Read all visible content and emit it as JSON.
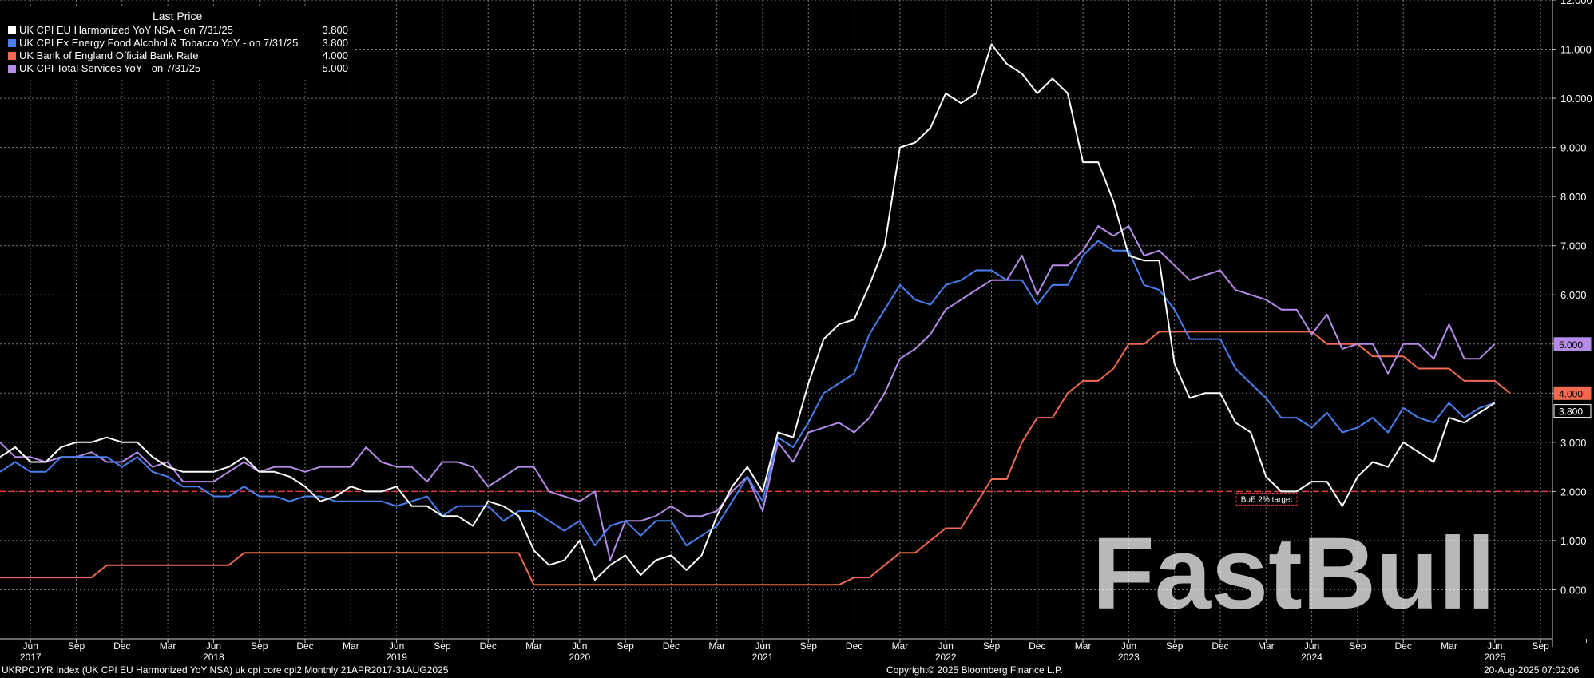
{
  "legend": {
    "heading": "Last Price",
    "items": [
      {
        "label": "UK CPI EU Harmonized YoY NSA -  on 7/31/25",
        "value": "3.800",
        "color": "#ffffff"
      },
      {
        "label": "UK CPI Ex Energy Food Alcohol & Tobacco YoY -  on 7/31/25",
        "value": "3.800",
        "color": "#4a7ff0"
      },
      {
        "label": "UK Bank of England Official Bank Rate",
        "value": "4.000",
        "color": "#f06a50"
      },
      {
        "label": "UK CPI Total Services YoY -  on 7/31/25",
        "value": "5.000",
        "color": "#b58ce8"
      }
    ]
  },
  "footer": {
    "left": "UKRPCJYR Index (UK CPI EU Harmonized YoY NSA) uk cpi core cpi2  Monthly 21APR2017-31AUG2025",
    "center": "Copyright© 2025 Bloomberg Finance L.P.",
    "right": "20-Aug-2025 07:02:06"
  },
  "watermark": "FastBull",
  "chart_data": {
    "type": "line",
    "ylim": [
      -1,
      12
    ],
    "y_ticks": [
      "0.000",
      "1.000",
      "2.000",
      "3.000",
      "4.000",
      "5.000",
      "6.000",
      "7.000",
      "8.000",
      "9.000",
      "10.000",
      "11.000",
      "12.000"
    ],
    "x_month_ticks": [
      "Jun",
      "Sep",
      "Dec",
      "Mar",
      "Jun",
      "Sep",
      "Dec",
      "Mar",
      "Jun",
      "Sep",
      "Dec",
      "Mar",
      "Jun",
      "Sep",
      "Dec",
      "Mar",
      "Jun",
      "Sep",
      "Dec",
      "Mar",
      "Jun",
      "Sep",
      "Dec",
      "Mar",
      "Jun",
      "Sep",
      "Dec",
      "Mar",
      "Jun",
      "Sep",
      "Dec",
      "Mar",
      "Jun",
      "Sep"
    ],
    "x_year_ticks": [
      "2017",
      "2018",
      "2019",
      "2020",
      "2021",
      "2022",
      "2023",
      "2024",
      "2025"
    ],
    "start_month": "2017-04",
    "reference_line": {
      "value": 2,
      "label": "BoE 2% target",
      "color": "#e83a3a"
    },
    "last_value_tags": [
      {
        "text": "5.000",
        "value": 5.0,
        "color": "#b58ce8"
      },
      {
        "text": "4.000",
        "value": 4.0,
        "color": "#f06a50"
      },
      {
        "text": "3.800",
        "value": 3.8,
        "color": "#ffffff"
      }
    ],
    "series": [
      {
        "name": "UK CPI EU Harmonized YoY NSA",
        "color": "#ffffff",
        "values": [
          2.7,
          2.9,
          2.6,
          2.6,
          2.9,
          3.0,
          3.0,
          3.1,
          3.0,
          3.0,
          2.7,
          2.5,
          2.4,
          2.4,
          2.4,
          2.5,
          2.7,
          2.4,
          2.4,
          2.3,
          2.1,
          1.8,
          1.9,
          2.1,
          2.0,
          2.0,
          2.1,
          1.7,
          1.7,
          1.5,
          1.5,
          1.3,
          1.8,
          1.7,
          1.5,
          0.8,
          0.5,
          0.6,
          1.0,
          0.2,
          0.5,
          0.7,
          0.3,
          0.6,
          0.7,
          0.4,
          0.7,
          1.5,
          2.1,
          2.5,
          2.0,
          3.2,
          3.1,
          4.2,
          5.1,
          5.4,
          5.5,
          6.2,
          7.0,
          9.0,
          9.1,
          9.4,
          10.1,
          9.9,
          10.1,
          11.1,
          10.7,
          10.5,
          10.1,
          10.4,
          10.1,
          8.7,
          8.7,
          7.9,
          6.8,
          6.7,
          6.7,
          4.6,
          3.9,
          4.0,
          4.0,
          3.4,
          3.2,
          2.3,
          2.0,
          2.0,
          2.2,
          2.2,
          1.7,
          2.3,
          2.6,
          2.5,
          3.0,
          2.8,
          2.6,
          3.5,
          3.4,
          3.6,
          3.8
        ]
      },
      {
        "name": "UK CPI Ex Energy Food Alcohol & Tobacco YoY",
        "color": "#4a7ff0",
        "values": [
          2.4,
          2.6,
          2.4,
          2.4,
          2.7,
          2.7,
          2.7,
          2.7,
          2.5,
          2.7,
          2.4,
          2.3,
          2.1,
          2.1,
          1.9,
          1.9,
          2.1,
          1.9,
          1.9,
          1.8,
          1.9,
          1.9,
          1.8,
          1.8,
          1.8,
          1.8,
          1.7,
          1.8,
          1.9,
          1.5,
          1.7,
          1.7,
          1.7,
          1.4,
          1.6,
          1.6,
          1.4,
          1.2,
          1.4,
          0.9,
          1.3,
          1.4,
          1.1,
          1.4,
          1.4,
          0.9,
          1.1,
          1.3,
          1.8,
          2.3,
          1.8,
          3.1,
          2.9,
          3.4,
          4.0,
          4.2,
          4.4,
          5.2,
          5.7,
          6.2,
          5.9,
          5.8,
          6.2,
          6.3,
          6.5,
          6.5,
          6.3,
          6.3,
          5.8,
          6.2,
          6.2,
          6.8,
          7.1,
          6.9,
          6.9,
          6.2,
          6.1,
          5.7,
          5.1,
          5.1,
          5.1,
          4.5,
          4.2,
          3.9,
          3.5,
          3.5,
          3.3,
          3.6,
          3.2,
          3.3,
          3.5,
          3.2,
          3.7,
          3.5,
          3.4,
          3.8,
          3.5,
          3.7,
          3.8
        ]
      },
      {
        "name": "UK Bank of England Official Bank Rate",
        "color": "#f06a50",
        "values": [
          0.25,
          0.25,
          0.25,
          0.25,
          0.25,
          0.25,
          0.25,
          0.5,
          0.5,
          0.5,
          0.5,
          0.5,
          0.5,
          0.5,
          0.5,
          0.5,
          0.75,
          0.75,
          0.75,
          0.75,
          0.75,
          0.75,
          0.75,
          0.75,
          0.75,
          0.75,
          0.75,
          0.75,
          0.75,
          0.75,
          0.75,
          0.75,
          0.75,
          0.75,
          0.75,
          0.1,
          0.1,
          0.1,
          0.1,
          0.1,
          0.1,
          0.1,
          0.1,
          0.1,
          0.1,
          0.1,
          0.1,
          0.1,
          0.1,
          0.1,
          0.1,
          0.1,
          0.1,
          0.1,
          0.1,
          0.1,
          0.25,
          0.25,
          0.5,
          0.75,
          0.75,
          1.0,
          1.25,
          1.25,
          1.75,
          2.25,
          2.25,
          3.0,
          3.5,
          3.5,
          4.0,
          4.25,
          4.25,
          4.5,
          5.0,
          5.0,
          5.25,
          5.25,
          5.25,
          5.25,
          5.25,
          5.25,
          5.25,
          5.25,
          5.25,
          5.25,
          5.25,
          5.0,
          5.0,
          5.0,
          4.75,
          4.75,
          4.75,
          4.5,
          4.5,
          4.5,
          4.25,
          4.25,
          4.25,
          4.0
        ]
      },
      {
        "name": "UK CPI Total Services YoY",
        "color": "#b58ce8",
        "values": [
          3.0,
          2.7,
          2.7,
          2.6,
          2.7,
          2.7,
          2.8,
          2.6,
          2.6,
          2.8,
          2.5,
          2.6,
          2.2,
          2.2,
          2.2,
          2.4,
          2.6,
          2.4,
          2.5,
          2.5,
          2.4,
          2.5,
          2.5,
          2.5,
          2.9,
          2.6,
          2.5,
          2.5,
          2.2,
          2.6,
          2.6,
          2.5,
          2.1,
          2.3,
          2.5,
          2.5,
          2.0,
          1.9,
          1.8,
          2.0,
          0.6,
          1.4,
          1.4,
          1.5,
          1.7,
          1.5,
          1.5,
          1.6,
          2.0,
          2.3,
          1.6,
          3.0,
          2.6,
          3.2,
          3.3,
          3.4,
          3.2,
          3.5,
          4.0,
          4.7,
          4.9,
          5.2,
          5.7,
          5.9,
          6.1,
          6.3,
          6.3,
          6.8,
          6.0,
          6.6,
          6.6,
          6.9,
          7.4,
          7.2,
          7.4,
          6.8,
          6.9,
          6.6,
          6.3,
          6.4,
          6.5,
          6.1,
          6.0,
          5.9,
          5.7,
          5.7,
          5.2,
          5.6,
          4.9,
          5.0,
          5.0,
          4.4,
          5.0,
          5.0,
          4.7,
          5.4,
          4.7,
          4.7,
          5.0
        ]
      }
    ]
  }
}
